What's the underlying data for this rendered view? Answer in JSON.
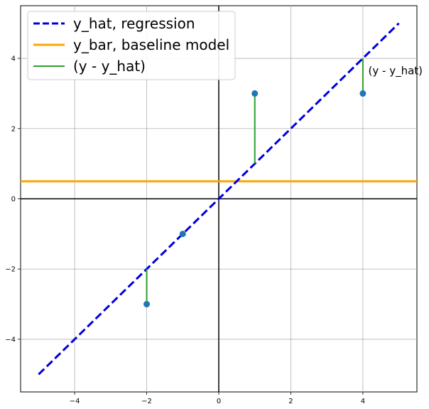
{
  "chart_data": {
    "type": "scatter",
    "xlim": [
      -5.5,
      5.5
    ],
    "ylim": [
      -5.5,
      5.5
    ],
    "xticks": [
      -4,
      -2,
      0,
      2,
      4
    ],
    "yticks": [
      -4,
      -2,
      0,
      2,
      4
    ],
    "xtick_labels": [
      "−4",
      "−2",
      "0",
      "2",
      "4"
    ],
    "ytick_labels": [
      "−4",
      "−2",
      "0",
      "2",
      "4"
    ],
    "grid": true,
    "legend_position": "top-left",
    "points": {
      "x": [
        -2,
        -1,
        1,
        4
      ],
      "y": [
        -3,
        -1,
        3,
        3
      ],
      "color": "#1f77b4"
    },
    "series": [
      {
        "name": "y_hat, regression",
        "kind": "dashed-line",
        "x": [
          -5,
          5
        ],
        "y": [
          -5,
          5
        ],
        "color": "#0000dd"
      },
      {
        "name": "y_bar, baseline model",
        "kind": "hline",
        "y": 0.5,
        "color": "#ffa500"
      },
      {
        "name": "(y - y_hat)",
        "kind": "residuals",
        "color": "#2ca02c"
      }
    ],
    "residuals": [
      {
        "x": -2,
        "y_from": -3,
        "y_to": -2
      },
      {
        "x": 1,
        "y_from": 1,
        "y_to": 3
      },
      {
        "x": 4,
        "y_from": 3,
        "y_to": 4
      }
    ],
    "annotations": [
      {
        "text": "(y - y_hat)",
        "x": 4.15,
        "y": 3.55
      }
    ]
  }
}
